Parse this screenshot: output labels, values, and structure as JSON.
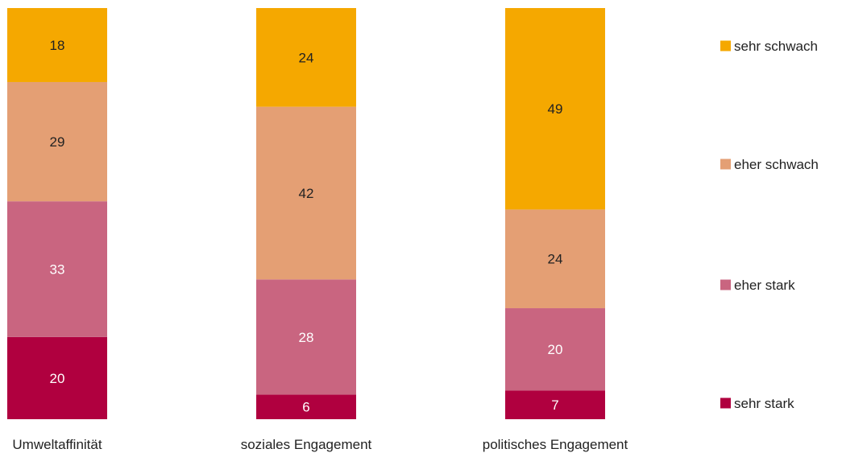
{
  "chart_data": {
    "type": "bar",
    "stacked": true,
    "categories": [
      "Umweltaffinität",
      "soziales Engagement",
      "politisches Engagement"
    ],
    "series": [
      {
        "name": "sehr stark",
        "color": "#b0003f",
        "values": [
          20,
          6,
          7
        ]
      },
      {
        "name": "eher stark",
        "color": "#c96580",
        "values": [
          33,
          28,
          20
        ]
      },
      {
        "name": "eher schwach",
        "color": "#e49f74",
        "values": [
          29,
          42,
          24
        ]
      },
      {
        "name": "sehr schwach",
        "color": "#f5a800",
        "values": [
          18,
          24,
          49
        ]
      }
    ],
    "ylim": [
      0,
      100
    ],
    "grid": false,
    "legend_position": "right",
    "label_colors": {
      "on_dark": "#ffffff",
      "on_light": "#222222"
    }
  }
}
